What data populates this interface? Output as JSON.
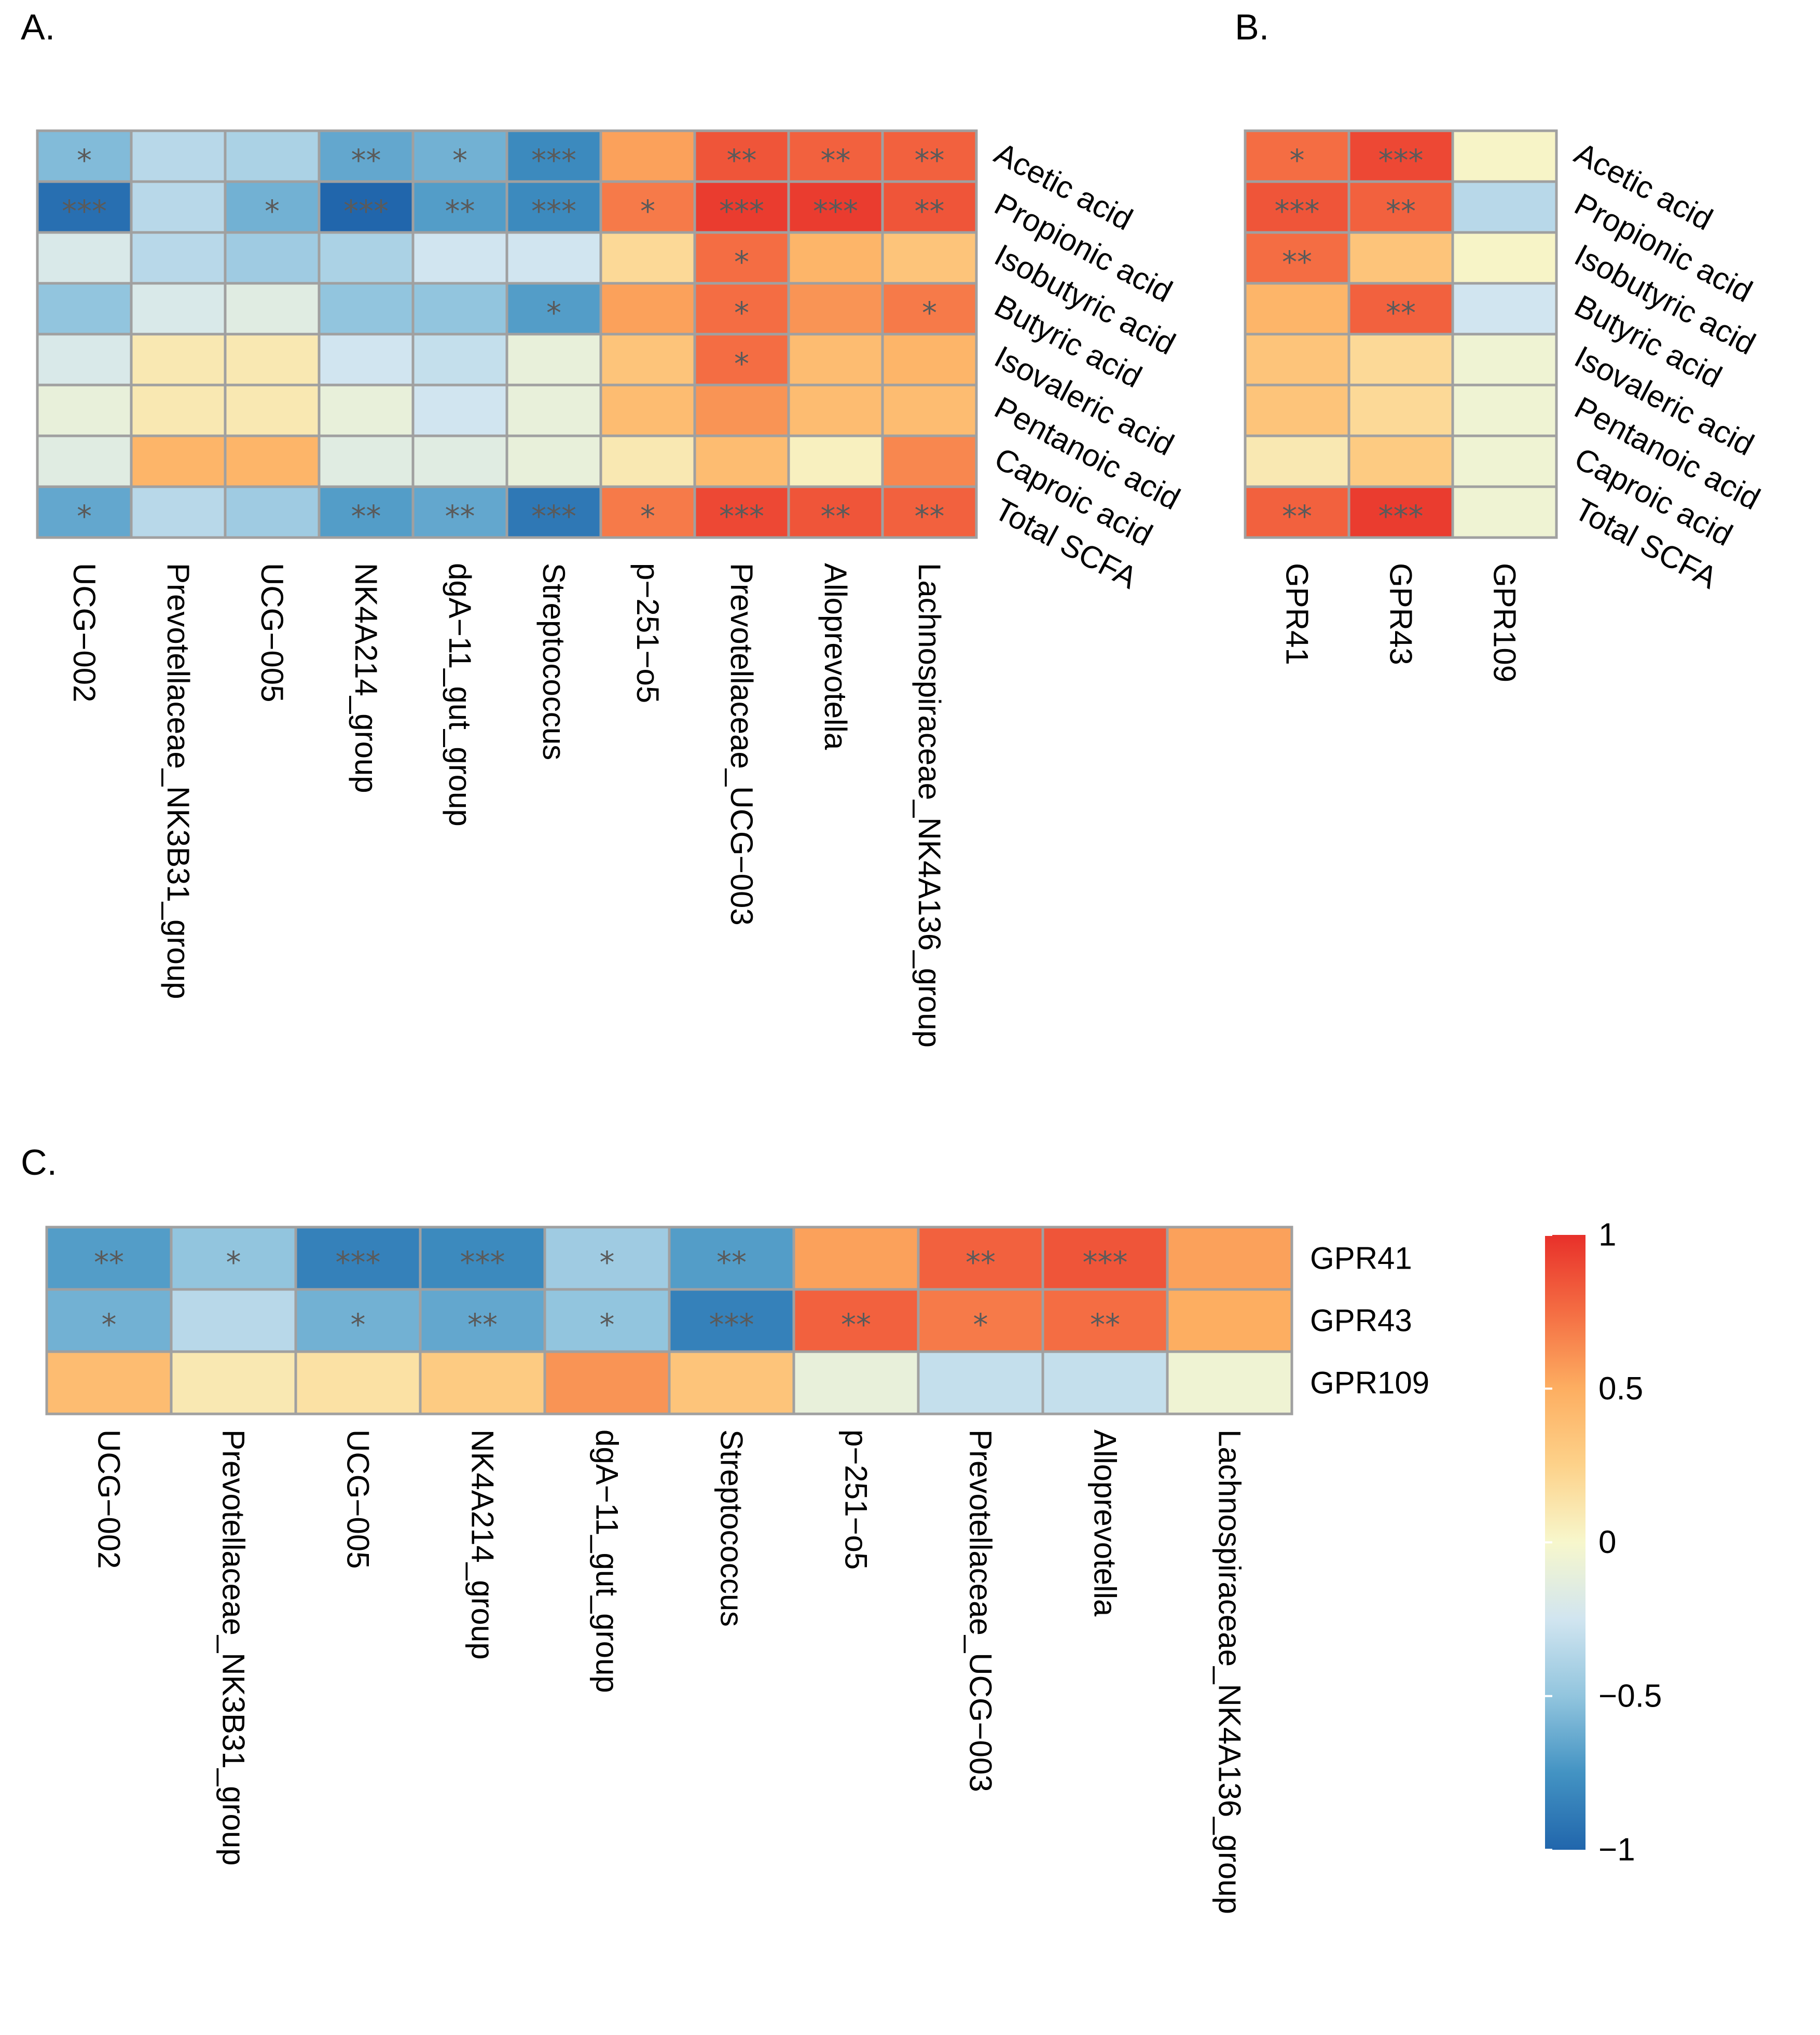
{
  "panel_labels": {
    "a": "A.",
    "b": "B.",
    "c": "C."
  },
  "chart_data": [
    {
      "id": "A",
      "type": "heatmap",
      "title": "",
      "rows": [
        "Acetic acid",
        "Propionic acid",
        "Isobutyric acid",
        "Butyric acid",
        "Isovaleric acid",
        "Pentanoic acid",
        "Caproic acid",
        "Total SCFA"
      ],
      "columns": [
        "UCG−002",
        "Prevotellaceae_NK3B31_group",
        "UCG−005",
        "NK4A214_group",
        "dgA−11_gut_group",
        "Streptococcus",
        "p−251−o5",
        "Prevotellaceae_UCG−003",
        "Alloprevotella",
        "Lachnospiraceae_NK4A136_group"
      ],
      "values": [
        [
          -0.55,
          -0.35,
          -0.4,
          -0.65,
          -0.6,
          -0.8,
          0.55,
          0.85,
          0.8,
          0.8
        ],
        [
          -0.95,
          -0.35,
          -0.6,
          -1.0,
          -0.7,
          -0.8,
          0.7,
          0.95,
          0.95,
          0.85
        ],
        [
          -0.2,
          -0.35,
          -0.45,
          -0.4,
          -0.25,
          -0.25,
          0.2,
          0.75,
          0.45,
          0.35
        ],
        [
          -0.5,
          -0.2,
          -0.15,
          -0.5,
          -0.5,
          -0.7,
          0.55,
          0.75,
          0.6,
          0.7
        ],
        [
          -0.2,
          0.1,
          0.1,
          -0.25,
          -0.3,
          -0.1,
          0.35,
          0.75,
          0.4,
          0.45
        ],
        [
          -0.1,
          0.1,
          0.1,
          -0.1,
          -0.25,
          -0.1,
          0.4,
          0.6,
          0.4,
          0.4
        ],
        [
          -0.15,
          0.45,
          0.45,
          -0.15,
          -0.15,
          -0.1,
          0.1,
          0.4,
          0.05,
          0.65
        ],
        [
          -0.65,
          -0.35,
          -0.45,
          -0.7,
          -0.65,
          -0.9,
          0.7,
          0.9,
          0.85,
          0.8
        ]
      ],
      "significance": [
        [
          "*",
          "",
          "",
          "**",
          "*",
          "***",
          "",
          "**",
          "**",
          "**"
        ],
        [
          "***",
          "",
          "*",
          "***",
          "**",
          "***",
          "*",
          "***",
          "***",
          "**"
        ],
        [
          "",
          "",
          "",
          "",
          "",
          "",
          "",
          "*",
          "",
          ""
        ],
        [
          "",
          "",
          "",
          "",
          "",
          "*",
          "",
          "*",
          "",
          "*"
        ],
        [
          "",
          "",
          "",
          "",
          "",
          "",
          "",
          "*",
          "",
          ""
        ],
        [
          "",
          "",
          "",
          "",
          "",
          "",
          "",
          "",
          "",
          ""
        ],
        [
          "",
          "",
          "",
          "",
          "",
          "",
          "",
          "",
          "",
          ""
        ],
        [
          "*",
          "",
          "",
          "**",
          "**",
          "***",
          "*",
          "***",
          "**",
          "**"
        ]
      ],
      "range": [
        -1,
        1
      ]
    },
    {
      "id": "B",
      "type": "heatmap",
      "title": "",
      "rows": [
        "Acetic acid",
        "Propionic acid",
        "Isobutyric acid",
        "Butyric acid",
        "Isovaleric acid",
        "Pentanoic acid",
        "Caproic acid",
        "Total SCFA"
      ],
      "columns": [
        "GPR41",
        "GPR43",
        "GPR109"
      ],
      "values": [
        [
          0.75,
          0.9,
          0.02
        ],
        [
          0.85,
          0.8,
          -0.35
        ],
        [
          0.75,
          0.35,
          0.02
        ],
        [
          0.45,
          0.8,
          -0.25
        ],
        [
          0.35,
          0.2,
          -0.05
        ],
        [
          0.35,
          0.2,
          -0.05
        ],
        [
          0.1,
          0.3,
          -0.05
        ],
        [
          0.8,
          0.95,
          -0.05
        ]
      ],
      "significance": [
        [
          "*",
          "***",
          ""
        ],
        [
          "***",
          "**",
          ""
        ],
        [
          "**",
          "",
          ""
        ],
        [
          "",
          "**",
          ""
        ],
        [
          "",
          "",
          ""
        ],
        [
          "",
          "",
          ""
        ],
        [
          "",
          "",
          ""
        ],
        [
          "**",
          "***",
          ""
        ]
      ],
      "range": [
        -1,
        1
      ]
    },
    {
      "id": "C",
      "type": "heatmap",
      "title": "",
      "rows": [
        "GPR41",
        "GPR43",
        "GPR109"
      ],
      "columns": [
        "UCG−002",
        "Prevotellaceae_NK3B31_group",
        "UCG−005",
        "NK4A214_group",
        "dgA−11_gut_group",
        "Streptococcus",
        "p−251−o5",
        "Prevotellaceae_UCG−003",
        "Alloprevotella",
        "Lachnospiraceae_NK4A136_group"
      ],
      "values": [
        [
          -0.7,
          -0.5,
          -0.85,
          -0.8,
          -0.45,
          -0.7,
          0.55,
          0.8,
          0.85,
          0.55
        ],
        [
          -0.6,
          -0.35,
          -0.6,
          -0.65,
          -0.5,
          -0.85,
          0.8,
          0.7,
          0.75,
          0.5
        ],
        [
          0.4,
          0.1,
          0.15,
          0.3,
          0.6,
          0.35,
          -0.1,
          -0.3,
          -0.3,
          -0.05
        ]
      ],
      "significance": [
        [
          "**",
          "*",
          "***",
          "***",
          "*",
          "**",
          "",
          "**",
          "***",
          ""
        ],
        [
          "*",
          "",
          "*",
          "**",
          "*",
          "***",
          "**",
          "*",
          "**",
          ""
        ],
        [
          "",
          "",
          "",
          "",
          "",
          "",
          "",
          "",
          "",
          ""
        ]
      ],
      "range": [
        -1,
        1
      ]
    }
  ],
  "colorbar": {
    "ticks": [
      1,
      0.5,
      0,
      -0.5,
      -1
    ],
    "tick_labels": [
      "1",
      "0.5",
      "0",
      "−0.5",
      "−1"
    ],
    "colors": [
      "#2166ac",
      "#4393c3",
      "#92c5de",
      "#d1e5f0",
      "#f7f7cc",
      "#fdd28a",
      "#fdae61",
      "#f46d43",
      "#e8302a"
    ]
  }
}
